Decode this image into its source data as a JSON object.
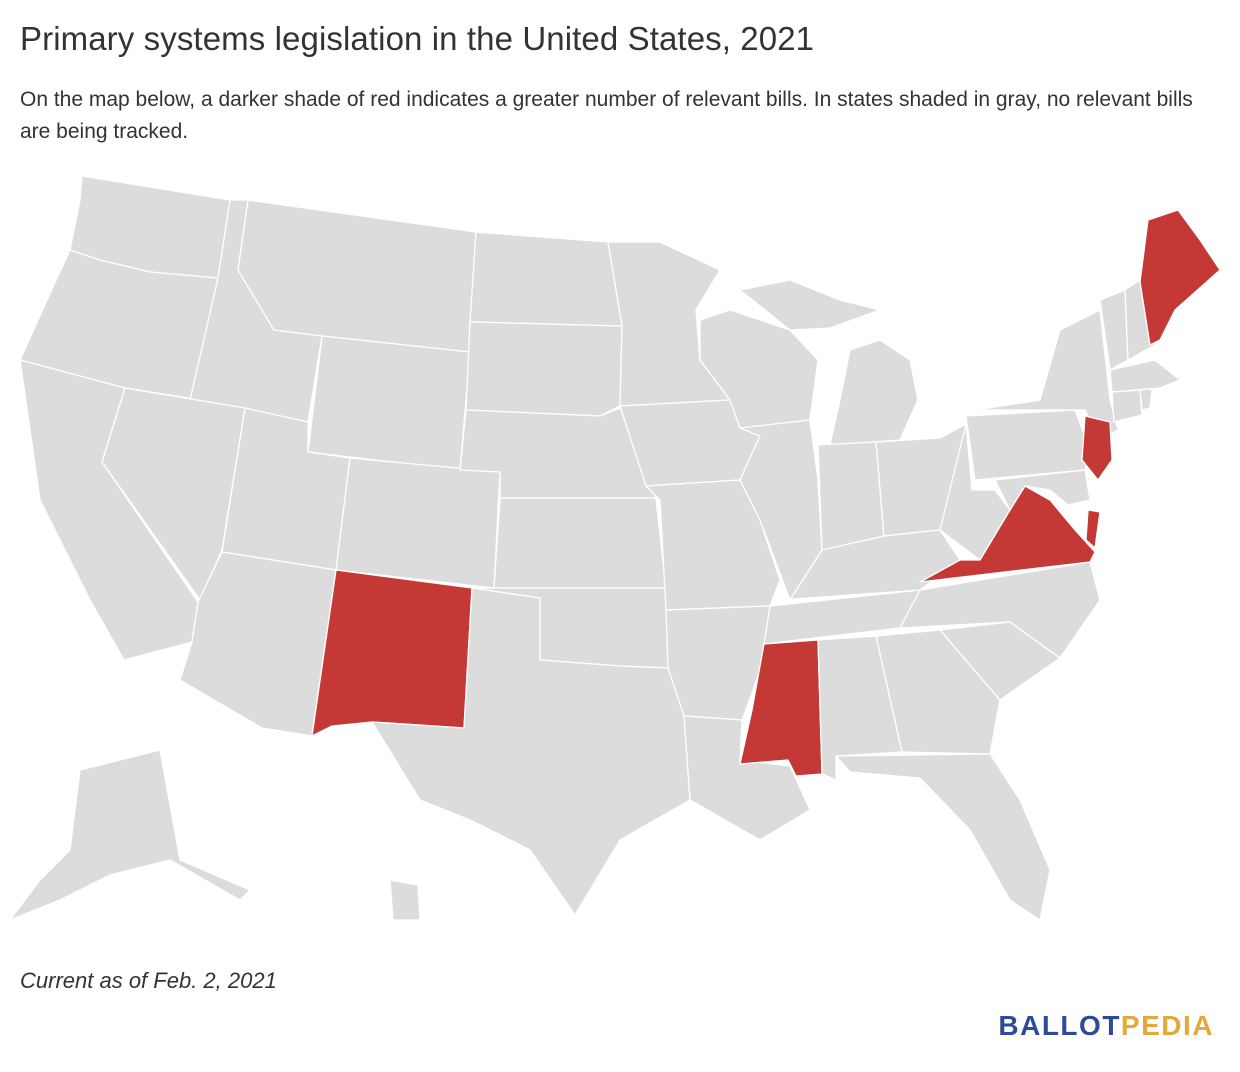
{
  "title": "Primary systems legislation in the United States, 2021",
  "subtitle": "On the map below, a darker shade of red indicates a greater number of relevant bills. In states shaded in gray, no relevant bills are being tracked.",
  "note": "Current as of Feb. 2, 2021",
  "logo": {
    "part1": "BALLOT",
    "part2": "PEDIA"
  },
  "colors": {
    "untracked": "#dcdcdc",
    "tracked": "#c43835",
    "border": "#ffffff",
    "logo_primary": "#2f4a9b",
    "logo_accent": "#e8a73a"
  },
  "map_data": {
    "type": "choropleth",
    "region": "United States",
    "states_with_bills": [
      "Maine",
      "New Jersey",
      "Delaware",
      "Virginia",
      "Mississippi",
      "New Mexico"
    ]
  }
}
